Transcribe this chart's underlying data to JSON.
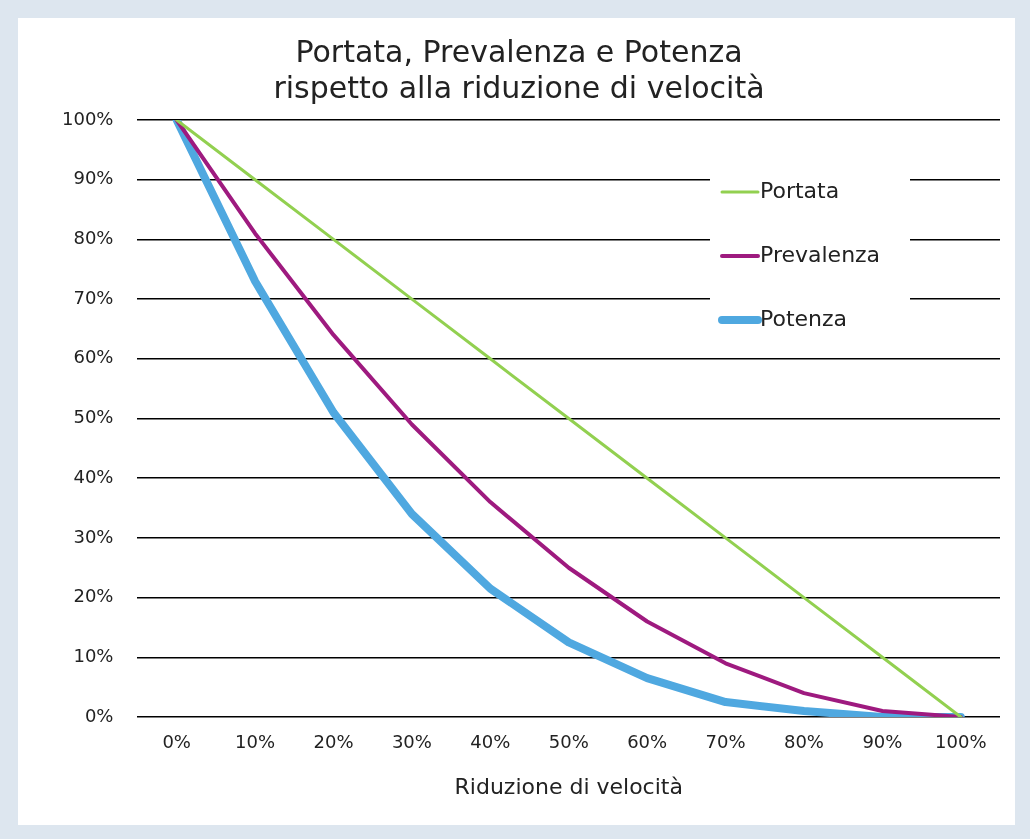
{
  "chart_data": {
    "type": "line",
    "title": "Portata, Prevalenza e Potenza\nrispetto alla riduzione di velocità",
    "xlabel": "Riduzione di velocità",
    "categories": [
      "0%",
      "10%",
      "20%",
      "30%",
      "40%",
      "50%",
      "60%",
      "70%",
      "80%",
      "90%",
      "100%"
    ],
    "series": [
      {
        "name": "Portata",
        "color": "#92d050",
        "values": [
          100,
          90,
          80,
          70,
          60,
          50,
          40,
          30,
          20,
          10,
          0
        ]
      },
      {
        "name": "Prevalenza",
        "color": "#9e1a7f",
        "values": [
          100,
          81,
          64,
          49,
          36,
          25,
          16,
          9,
          4,
          1,
          0
        ]
      },
      {
        "name": "Potenza",
        "color": "#4fa8e0",
        "values": [
          100,
          73,
          51,
          34,
          21.5,
          12.5,
          6.5,
          2.5,
          1,
          0,
          0
        ]
      }
    ],
    "ylim": [
      0,
      100
    ],
    "yticks": [
      {
        "value": 0,
        "label": "0%"
      },
      {
        "value": 10,
        "label": "10%"
      },
      {
        "value": 20,
        "label": "20%"
      },
      {
        "value": 30,
        "label": "30%"
      },
      {
        "value": 40,
        "label": "40%"
      },
      {
        "value": 50,
        "label": "50%"
      },
      {
        "value": 60,
        "label": "60%"
      },
      {
        "value": 70,
        "label": "70%"
      },
      {
        "value": 80,
        "label": "80%"
      },
      {
        "value": 90,
        "label": "90%"
      },
      {
        "value": 100,
        "label": "100%"
      }
    ],
    "grid": "y",
    "legend": "top right",
    "marker": "none",
    "line_style": "solid"
  }
}
